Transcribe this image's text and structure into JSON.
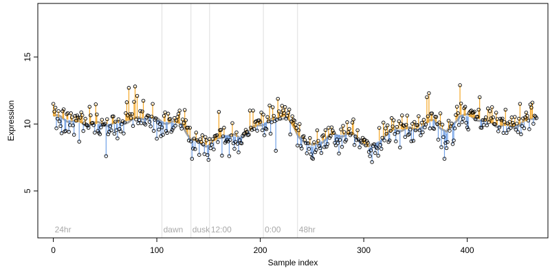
{
  "chart_data": {
    "type": "scatter",
    "title": "",
    "xlabel": "Sample index",
    "ylabel": "Expression",
    "xlim": [
      -15,
      478
    ],
    "ylim": [
      1.5,
      19
    ],
    "x_ticks": [
      0,
      100,
      200,
      300,
      400
    ],
    "y_ticks": [
      5,
      10,
      15
    ],
    "grid": false,
    "phase_markers": [
      {
        "label": "24hr",
        "x": 0,
        "line": false
      },
      {
        "label": "dawn",
        "x": 105,
        "line": true
      },
      {
        "label": "dusk",
        "x": 133,
        "line": true
      },
      {
        "label": "12:00",
        "x": 151,
        "line": true
      },
      {
        "label": "0:00",
        "x": 203,
        "line": true
      },
      {
        "label": "48hr",
        "x": 236,
        "line": true
      }
    ],
    "colors": {
      "above": "#f5a623",
      "below": "#6f9fe6",
      "trend": "#a0a0a0",
      "phase_line": "#dddddd",
      "point": "#000000"
    },
    "anchors": [
      [
        0,
        10.6
      ],
      [
        30,
        10.0
      ],
      [
        60,
        10.0
      ],
      [
        75,
        10.3
      ],
      [
        92,
        10.5
      ],
      [
        105,
        10.2
      ],
      [
        125,
        10.0
      ],
      [
        133,
        8.8
      ],
      [
        150,
        8.4
      ],
      [
        165,
        9.2
      ],
      [
        180,
        9.0
      ],
      [
        200,
        10.0
      ],
      [
        225,
        10.6
      ],
      [
        236,
        9.2
      ],
      [
        250,
        8.3
      ],
      [
        270,
        9.2
      ],
      [
        290,
        9.2
      ],
      [
        305,
        8.2
      ],
      [
        330,
        9.6
      ],
      [
        350,
        9.6
      ],
      [
        368,
        10.3
      ],
      [
        380,
        9.3
      ],
      [
        393,
        10.7
      ],
      [
        410,
        10.4
      ],
      [
        430,
        9.9
      ],
      [
        445,
        9.8
      ],
      [
        465,
        10.5
      ]
    ],
    "series": [
      {
        "n_points": 468,
        "x_start": 0,
        "x_step": 1,
        "spike_up": [
          [
            0,
            11.5
          ],
          [
            73,
            12.7
          ],
          [
            79,
            12.8
          ],
          [
            81,
            12.1
          ],
          [
            96,
            11.5
          ],
          [
            122,
            11.0
          ],
          [
            160,
            10.9
          ],
          [
            193,
            11.0
          ],
          [
            222,
            11.0
          ],
          [
            393,
            12.9
          ],
          [
            412,
            12.0
          ],
          [
            451,
            11.5
          ],
          [
            463,
            11.6
          ],
          [
            361,
            12.0
          ],
          [
            363,
            12.3
          ]
        ],
        "spike_down": [
          [
            51,
            7.6
          ],
          [
            134,
            7.4
          ],
          [
            141,
            7.7
          ],
          [
            170,
            7.6
          ],
          [
            215,
            8.0
          ],
          [
            251,
            7.4
          ],
          [
            306,
            7.6
          ],
          [
            378,
            7.4
          ],
          [
            380,
            8.2
          ]
        ]
      }
    ]
  }
}
